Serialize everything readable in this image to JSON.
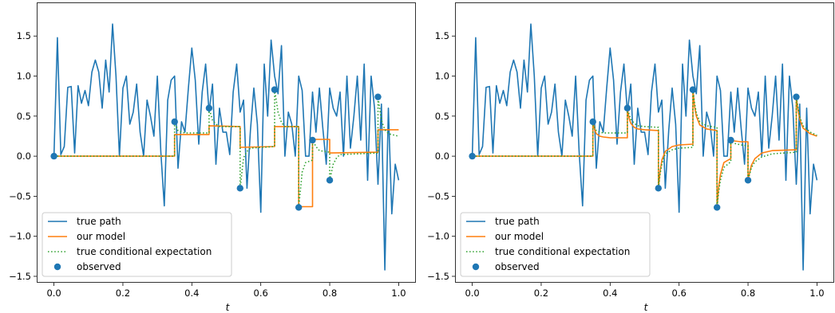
{
  "chart_data": [
    {
      "type": "line",
      "xlabel": "t",
      "ylabel": "",
      "xlim": [
        -0.05,
        1.05
      ],
      "ylim": [
        -1.58,
        1.92
      ],
      "xticks": [
        0.0,
        0.2,
        0.4,
        0.6,
        0.8,
        1.0
      ],
      "xtick_labels": [
        "0.0",
        "0.2",
        "0.4",
        "0.6",
        "0.8",
        "1.0"
      ],
      "yticks": [
        -1.5,
        -1.0,
        -0.5,
        0.0,
        0.5,
        1.0,
        1.5
      ],
      "ytick_labels": [
        "−1.5",
        "−1.0",
        "−0.5",
        "0.0",
        "0.5",
        "1.0",
        "1.5"
      ],
      "legend_position": "lower-left",
      "legend": [
        "true path",
        "our model",
        "true conditional expectation",
        "observed"
      ],
      "colors": {
        "true_path": "#1f77b4",
        "model": "#ff7f0e",
        "expectation": "#2ca02c",
        "observed": "#1f77b4"
      },
      "series": [
        {
          "name": "true path",
          "style": "solid",
          "x": [
            0.0,
            0.01,
            0.02,
            0.03,
            0.04,
            0.05,
            0.06,
            0.07,
            0.08,
            0.09,
            0.1,
            0.11,
            0.12,
            0.13,
            0.14,
            0.15,
            0.16,
            0.17,
            0.18,
            0.19,
            0.2,
            0.21,
            0.22,
            0.23,
            0.24,
            0.25,
            0.26,
            0.27,
            0.28,
            0.29,
            0.3,
            0.31,
            0.32,
            0.33,
            0.34,
            0.35,
            0.36,
            0.37,
            0.38,
            0.39,
            0.4,
            0.41,
            0.42,
            0.43,
            0.44,
            0.45,
            0.46,
            0.47,
            0.48,
            0.49,
            0.5,
            0.51,
            0.52,
            0.53,
            0.54,
            0.55,
            0.56,
            0.57,
            0.58,
            0.59,
            0.6,
            0.61,
            0.62,
            0.63,
            0.64,
            0.65,
            0.66,
            0.67,
            0.68,
            0.69,
            0.7,
            0.71,
            0.72,
            0.73,
            0.74,
            0.75,
            0.76,
            0.77,
            0.78,
            0.79,
            0.8,
            0.81,
            0.82,
            0.83,
            0.84,
            0.85,
            0.86,
            0.87,
            0.88,
            0.89,
            0.9,
            0.91,
            0.92,
            0.93,
            0.94,
            0.95,
            0.96,
            0.97,
            0.98,
            0.99,
            1.0
          ],
          "y": [
            0.0,
            1.48,
            0.02,
            0.12,
            0.86,
            0.87,
            0.04,
            0.88,
            0.66,
            0.82,
            0.63,
            1.05,
            1.2,
            1.05,
            0.6,
            1.2,
            0.8,
            1.65,
            1.0,
            0.0,
            0.85,
            1.0,
            0.4,
            0.55,
            0.9,
            0.3,
            0.0,
            0.7,
            0.5,
            0.25,
            1.0,
            0.05,
            -0.62,
            0.7,
            0.95,
            1.0,
            -0.15,
            0.43,
            0.3,
            0.85,
            1.35,
            0.95,
            0.15,
            0.8,
            1.15,
            0.55,
            0.9,
            -0.1,
            0.6,
            0.3,
            0.3,
            0.02,
            0.8,
            1.15,
            0.55,
            0.7,
            -0.4,
            0.32,
            0.85,
            0.4,
            -0.7,
            1.15,
            0.5,
            1.45,
            1.0,
            0.78,
            1.38,
            0.0,
            0.55,
            0.4,
            0.0,
            1.0,
            0.82,
            0.0,
            0.0,
            0.8,
            0.3,
            0.85,
            0.35,
            -0.1,
            0.85,
            0.6,
            0.5,
            0.8,
            0.0,
            1.0,
            0.1,
            0.5,
            1.0,
            0.2,
            1.15,
            -0.3,
            1.0,
            0.6,
            -0.35,
            0.65,
            -1.42,
            0.6,
            -0.72,
            -0.1,
            -0.3
          ]
        },
        {
          "name": "our model",
          "style": "solid",
          "x": [
            0.0,
            0.35,
            0.35,
            0.45,
            0.45,
            0.54,
            0.54,
            0.64,
            0.64,
            0.71,
            0.71,
            0.75,
            0.75,
            0.8,
            0.8,
            0.94,
            0.94,
            1.0
          ],
          "y": [
            0.0,
            0.0,
            0.27,
            0.27,
            0.38,
            0.37,
            0.11,
            0.12,
            0.37,
            0.37,
            -0.63,
            -0.63,
            0.21,
            0.21,
            0.04,
            0.05,
            0.33,
            0.33
          ]
        },
        {
          "name": "true conditional expectation",
          "style": "dotted",
          "x": [
            0.0,
            0.35,
            0.35,
            0.36,
            0.37,
            0.38,
            0.45,
            0.45,
            0.46,
            0.47,
            0.48,
            0.54,
            0.54,
            0.55,
            0.56,
            0.57,
            0.64,
            0.64,
            0.65,
            0.66,
            0.67,
            0.71,
            0.71,
            0.72,
            0.73,
            0.75,
            0.75,
            0.76,
            0.77,
            0.8,
            0.8,
            0.81,
            0.82,
            0.83,
            0.94,
            0.94,
            0.95,
            0.96,
            0.97,
            1.0
          ],
          "y": [
            0.0,
            0.0,
            0.43,
            0.32,
            0.3,
            0.29,
            0.29,
            0.6,
            0.45,
            0.4,
            0.37,
            0.37,
            -0.4,
            -0.02,
            0.06,
            0.1,
            0.12,
            0.83,
            0.55,
            0.42,
            0.37,
            0.37,
            -0.64,
            -0.2,
            -0.08,
            -0.05,
            0.2,
            0.12,
            0.07,
            0.05,
            -0.3,
            -0.1,
            -0.02,
            0.02,
            0.04,
            0.74,
            0.45,
            0.33,
            0.28,
            0.25
          ]
        }
      ],
      "observed": {
        "name": "observed",
        "x": [
          0.0,
          0.35,
          0.45,
          0.54,
          0.64,
          0.71,
          0.75,
          0.8,
          0.94
        ],
        "y": [
          0.0,
          0.43,
          0.6,
          -0.4,
          0.83,
          -0.64,
          0.2,
          -0.3,
          0.74
        ]
      }
    },
    {
      "type": "line",
      "xlabel": "t",
      "ylabel": "",
      "xlim": [
        -0.05,
        1.05
      ],
      "ylim": [
        -1.58,
        1.92
      ],
      "xticks": [
        0.0,
        0.2,
        0.4,
        0.6,
        0.8,
        1.0
      ],
      "xtick_labels": [
        "0.0",
        "0.2",
        "0.4",
        "0.6",
        "0.8",
        "1.0"
      ],
      "yticks": [
        -1.5,
        -1.0,
        -0.5,
        0.0,
        0.5,
        1.0,
        1.5
      ],
      "ytick_labels": [
        "−1.5",
        "−1.0",
        "−0.5",
        "0.0",
        "0.5",
        "1.0",
        "1.5"
      ],
      "legend_position": "lower-left",
      "legend": [
        "true path",
        "our model",
        "true conditional expectation",
        "observed"
      ],
      "colors": {
        "true_path": "#1f77b4",
        "model": "#ff7f0e",
        "expectation": "#2ca02c",
        "observed": "#1f77b4"
      },
      "series": [
        {
          "name": "true path",
          "style": "solid",
          "x": [
            0.0,
            0.01,
            0.02,
            0.03,
            0.04,
            0.05,
            0.06,
            0.07,
            0.08,
            0.09,
            0.1,
            0.11,
            0.12,
            0.13,
            0.14,
            0.15,
            0.16,
            0.17,
            0.18,
            0.19,
            0.2,
            0.21,
            0.22,
            0.23,
            0.24,
            0.25,
            0.26,
            0.27,
            0.28,
            0.29,
            0.3,
            0.31,
            0.32,
            0.33,
            0.34,
            0.35,
            0.36,
            0.37,
            0.38,
            0.39,
            0.4,
            0.41,
            0.42,
            0.43,
            0.44,
            0.45,
            0.46,
            0.47,
            0.48,
            0.49,
            0.5,
            0.51,
            0.52,
            0.53,
            0.54,
            0.55,
            0.56,
            0.57,
            0.58,
            0.59,
            0.6,
            0.61,
            0.62,
            0.63,
            0.64,
            0.65,
            0.66,
            0.67,
            0.68,
            0.69,
            0.7,
            0.71,
            0.72,
            0.73,
            0.74,
            0.75,
            0.76,
            0.77,
            0.78,
            0.79,
            0.8,
            0.81,
            0.82,
            0.83,
            0.84,
            0.85,
            0.86,
            0.87,
            0.88,
            0.89,
            0.9,
            0.91,
            0.92,
            0.93,
            0.94,
            0.95,
            0.96,
            0.97,
            0.98,
            0.99,
            1.0
          ],
          "y": [
            0.0,
            1.48,
            0.02,
            0.12,
            0.86,
            0.87,
            0.04,
            0.88,
            0.66,
            0.82,
            0.63,
            1.05,
            1.2,
            1.05,
            0.6,
            1.2,
            0.8,
            1.65,
            1.0,
            0.0,
            0.85,
            1.0,
            0.4,
            0.55,
            0.9,
            0.3,
            0.0,
            0.7,
            0.5,
            0.25,
            1.0,
            0.05,
            -0.62,
            0.7,
            0.95,
            1.0,
            -0.15,
            0.43,
            0.3,
            0.85,
            1.35,
            0.95,
            0.15,
            0.8,
            1.15,
            0.55,
            0.9,
            -0.1,
            0.6,
            0.3,
            0.3,
            0.02,
            0.8,
            1.15,
            0.55,
            0.7,
            -0.4,
            0.32,
            0.85,
            0.4,
            -0.7,
            1.15,
            0.5,
            1.45,
            1.0,
            0.78,
            1.38,
            0.0,
            0.55,
            0.4,
            0.0,
            1.0,
            0.82,
            0.0,
            0.0,
            0.8,
            0.3,
            0.85,
            0.35,
            -0.1,
            0.85,
            0.6,
            0.5,
            0.8,
            0.0,
            1.0,
            0.1,
            0.5,
            1.0,
            0.2,
            1.15,
            -0.3,
            1.0,
            0.6,
            -0.35,
            0.65,
            -1.42,
            0.6,
            -0.72,
            -0.1,
            -0.3
          ]
        },
        {
          "name": "our model",
          "style": "solid",
          "x": [
            0.0,
            0.35,
            0.35,
            0.355,
            0.36,
            0.37,
            0.38,
            0.4,
            0.45,
            0.45,
            0.455,
            0.46,
            0.47,
            0.48,
            0.5,
            0.54,
            0.54,
            0.545,
            0.55,
            0.56,
            0.58,
            0.6,
            0.64,
            0.64,
            0.645,
            0.65,
            0.66,
            0.68,
            0.71,
            0.71,
            0.715,
            0.72,
            0.73,
            0.75,
            0.75,
            0.755,
            0.76,
            0.78,
            0.8,
            0.8,
            0.805,
            0.81,
            0.82,
            0.84,
            0.87,
            0.94,
            0.94,
            0.945,
            0.95,
            0.96,
            0.98,
            1.0
          ],
          "y": [
            0.0,
            0.0,
            0.43,
            0.33,
            0.28,
            0.25,
            0.24,
            0.23,
            0.23,
            0.6,
            0.47,
            0.41,
            0.36,
            0.34,
            0.33,
            0.32,
            -0.4,
            -0.19,
            -0.05,
            0.06,
            0.12,
            0.14,
            0.15,
            0.83,
            0.62,
            0.5,
            0.39,
            0.34,
            0.32,
            -0.64,
            -0.38,
            -0.23,
            -0.08,
            -0.03,
            0.2,
            0.19,
            0.19,
            0.18,
            0.18,
            -0.3,
            -0.2,
            -0.11,
            -0.03,
            0.04,
            0.07,
            0.08,
            0.74,
            0.58,
            0.46,
            0.35,
            0.28,
            0.25
          ]
        },
        {
          "name": "true conditional expectation",
          "style": "dotted",
          "x": [
            0.0,
            0.35,
            0.35,
            0.355,
            0.36,
            0.37,
            0.38,
            0.4,
            0.45,
            0.45,
            0.455,
            0.46,
            0.47,
            0.48,
            0.5,
            0.54,
            0.54,
            0.545,
            0.55,
            0.56,
            0.58,
            0.6,
            0.64,
            0.64,
            0.645,
            0.65,
            0.66,
            0.68,
            0.71,
            0.71,
            0.715,
            0.72,
            0.73,
            0.75,
            0.75,
            0.755,
            0.76,
            0.78,
            0.8,
            0.8,
            0.805,
            0.81,
            0.82,
            0.84,
            0.87,
            0.94,
            0.94,
            0.945,
            0.95,
            0.96,
            0.98,
            1.0
          ],
          "y": [
            0.0,
            0.0,
            0.43,
            0.36,
            0.32,
            0.3,
            0.29,
            0.29,
            0.29,
            0.6,
            0.52,
            0.46,
            0.41,
            0.38,
            0.37,
            0.36,
            -0.4,
            -0.22,
            -0.1,
            0.03,
            0.08,
            0.1,
            0.11,
            0.83,
            0.66,
            0.54,
            0.43,
            0.38,
            0.36,
            -0.64,
            -0.44,
            -0.3,
            -0.14,
            -0.07,
            0.2,
            0.17,
            0.16,
            0.14,
            0.13,
            -0.3,
            -0.22,
            -0.14,
            -0.07,
            -0.01,
            0.03,
            0.05,
            0.74,
            0.6,
            0.49,
            0.38,
            0.3,
            0.26
          ]
        }
      ],
      "observed": {
        "name": "observed",
        "x": [
          0.0,
          0.35,
          0.45,
          0.54,
          0.64,
          0.71,
          0.75,
          0.8,
          0.94
        ],
        "y": [
          0.0,
          0.43,
          0.6,
          -0.4,
          0.83,
          -0.64,
          0.2,
          -0.3,
          0.74
        ]
      }
    }
  ]
}
